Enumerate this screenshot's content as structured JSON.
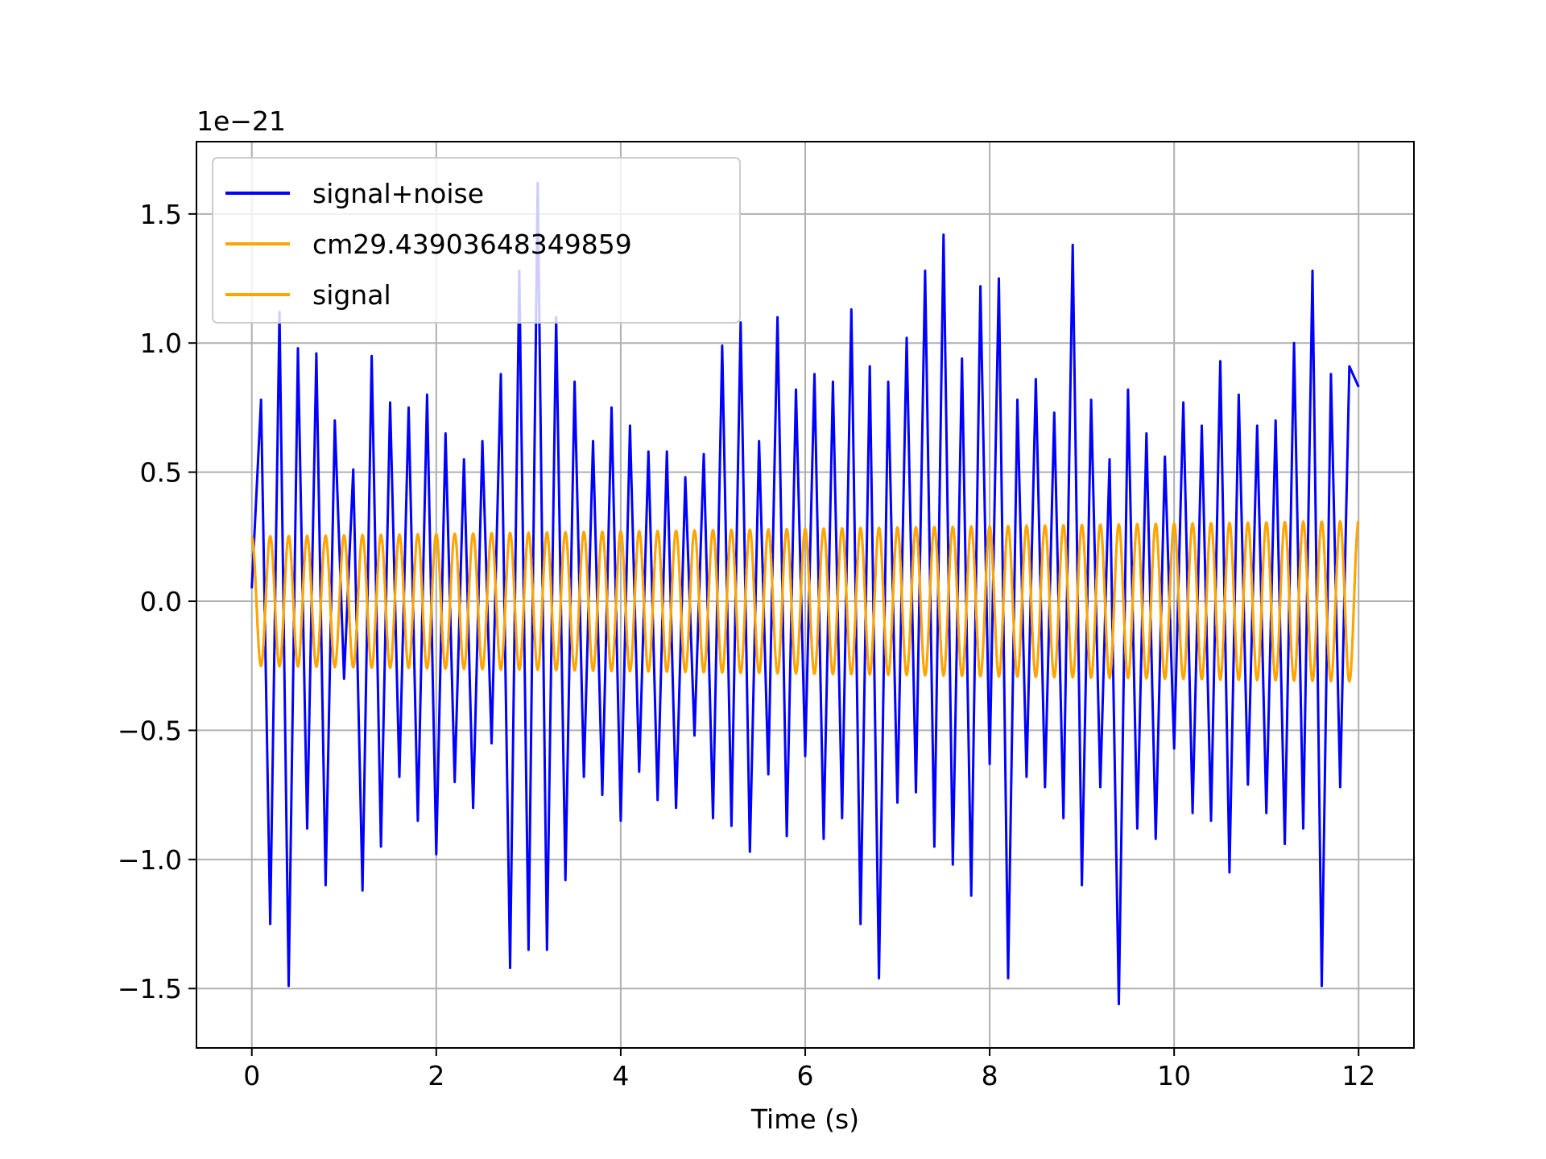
{
  "chart_data": {
    "type": "line",
    "title": "",
    "xlabel": "Time (s)",
    "ylabel": "",
    "y_offset_label": "1e−21",
    "xlim": [
      -0.6,
      12.6
    ],
    "ylim": [
      -1.73,
      1.78
    ],
    "x_ticks": [
      0,
      2,
      4,
      6,
      8,
      10,
      12
    ],
    "x_tick_labels": [
      "0",
      "2",
      "4",
      "6",
      "8",
      "10",
      "12"
    ],
    "y_ticks": [
      -1.5,
      -1.0,
      -0.5,
      0.0,
      0.5,
      1.0,
      1.5
    ],
    "y_tick_labels": [
      "−1.5",
      "−1.0",
      "−0.5",
      "0.0",
      "0.5",
      "1.0",
      "1.5"
    ],
    "grid": true,
    "legend_position": "upper-left",
    "series": [
      {
        "name": "signal+noise",
        "color": "#0000ff",
        "x": [
          0.0,
          0.1,
          0.2,
          0.3,
          0.4,
          0.5,
          0.6,
          0.7,
          0.8,
          0.9,
          1.0,
          1.1,
          1.2,
          1.3,
          1.4,
          1.5,
          1.6,
          1.7,
          1.8,
          1.9,
          2.0,
          2.1,
          2.2,
          2.3,
          2.4,
          2.5,
          2.6,
          2.7,
          2.8,
          2.9,
          3.0,
          3.1,
          3.2,
          3.3,
          3.4,
          3.5,
          3.6,
          3.7,
          3.8,
          3.9,
          4.0,
          4.1,
          4.2,
          4.3,
          4.4,
          4.5,
          4.6,
          4.7,
          4.8,
          4.9,
          5.0,
          5.1,
          5.2,
          5.3,
          5.4,
          5.5,
          5.6,
          5.7,
          5.8,
          5.9,
          6.0,
          6.1,
          6.2,
          6.3,
          6.4,
          6.5,
          6.6,
          6.7,
          6.8,
          6.9,
          7.0,
          7.1,
          7.2,
          7.3,
          7.4,
          7.5,
          7.6,
          7.7,
          7.8,
          7.9,
          8.0,
          8.1,
          8.2,
          8.3,
          8.4,
          8.5,
          8.6,
          8.7,
          8.8,
          8.9,
          9.0,
          9.1,
          9.2,
          9.3,
          9.4,
          9.5,
          9.6,
          9.7,
          9.8,
          9.9,
          10.0,
          10.1,
          10.2,
          10.3,
          10.4,
          10.5,
          10.6,
          10.7,
          10.8,
          10.9,
          11.0,
          11.1,
          11.2,
          11.3,
          11.4,
          11.5,
          11.6,
          11.7,
          11.8,
          11.9,
          12.0
        ],
        "y": [
          0.05,
          0.78,
          -1.25,
          1.12,
          -1.49,
          0.98,
          -0.88,
          0.96,
          -1.1,
          0.7,
          -0.3,
          0.51,
          -1.12,
          0.95,
          -0.95,
          0.77,
          -0.68,
          0.75,
          -0.85,
          0.8,
          -0.98,
          0.65,
          -0.7,
          0.55,
          -0.8,
          0.62,
          -0.55,
          0.88,
          -1.42,
          1.28,
          -1.35,
          1.62,
          -1.35,
          1.1,
          -1.08,
          0.85,
          -0.68,
          0.62,
          -0.75,
          0.75,
          -0.85,
          0.68,
          -0.66,
          0.58,
          -0.77,
          0.58,
          -0.8,
          0.48,
          -0.52,
          0.57,
          -0.84,
          0.99,
          -0.87,
          1.08,
          -0.97,
          0.62,
          -0.67,
          1.1,
          -0.91,
          0.82,
          -0.6,
          0.88,
          -0.92,
          0.85,
          -0.84,
          1.13,
          -1.25,
          0.91,
          -1.46,
          0.85,
          -0.78,
          1.02,
          -0.74,
          1.28,
          -0.95,
          1.42,
          -1.02,
          0.94,
          -1.14,
          1.22,
          -0.63,
          1.25,
          -1.46,
          0.78,
          -0.68,
          0.86,
          -0.72,
          0.73,
          -0.84,
          1.38,
          -1.1,
          0.78,
          -0.72,
          0.55,
          -1.56,
          0.82,
          -0.88,
          0.65,
          -0.92,
          0.56,
          -0.57,
          0.77,
          -0.82,
          0.68,
          -0.85,
          0.93,
          -1.05,
          0.8,
          -0.71,
          0.68,
          -0.82,
          0.7,
          -0.94,
          1.0,
          -0.88,
          1.28,
          -1.49,
          0.88,
          -0.72,
          0.91,
          0.83
        ]
      },
      {
        "name": "cm29.43903648349859",
        "color": "#ffa500",
        "frequency_hz": 5.0,
        "amplitude_start": 0.25,
        "amplitude_end": 0.31,
        "x_start": 0.0,
        "x_end": 12.0
      },
      {
        "name": "signal",
        "color": "#ffa500",
        "frequency_hz": 5.0,
        "amplitude_start": 0.25,
        "amplitude_end": 0.31,
        "x_start": 0.0,
        "x_end": 12.0
      }
    ]
  }
}
